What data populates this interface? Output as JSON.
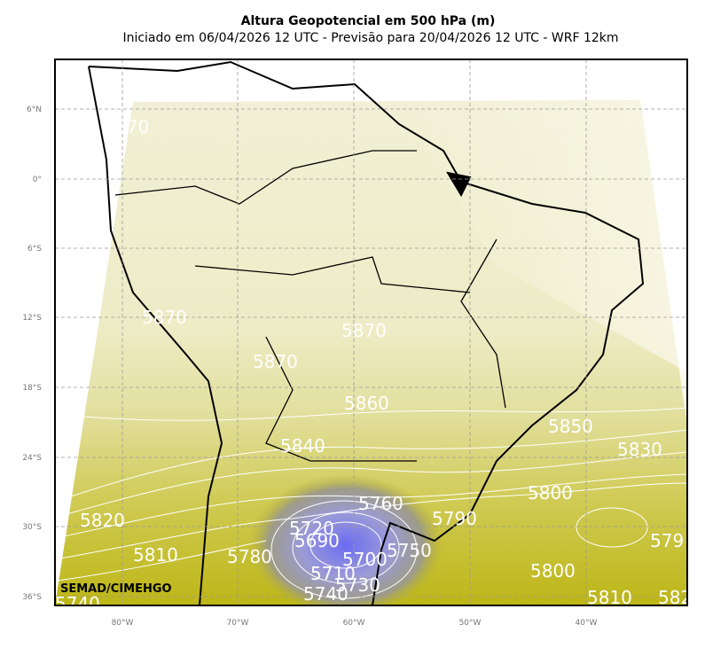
{
  "title": "Altura Geopotencial em 500 hPa (m)",
  "subtitle": "Iniciado em 06/04/2026 12 UTC - Previsão para 20/04/2026 12 UTC - WRF 12km",
  "credit": "SEMAD/CIMEHGO",
  "lat_labels": [
    "6°N",
    "0°",
    "6°S",
    "12°S",
    "18°S",
    "24°S",
    "30°S",
    "36°S"
  ],
  "lon_labels": [
    "80°W",
    "70°W",
    "60°W",
    "50°W",
    "40°W"
  ],
  "contour_labels": [
    "570",
    "5870",
    "5870",
    "5870",
    "5860",
    "5850",
    "5840",
    "5830",
    "5820",
    "5810",
    "5800",
    "5800",
    "5790",
    "5780",
    "5760",
    "5750",
    "5720",
    "5690",
    "5700",
    "5710",
    "5730",
    "5740",
    "5810",
    "579",
    "582",
    "5740"
  ]
}
